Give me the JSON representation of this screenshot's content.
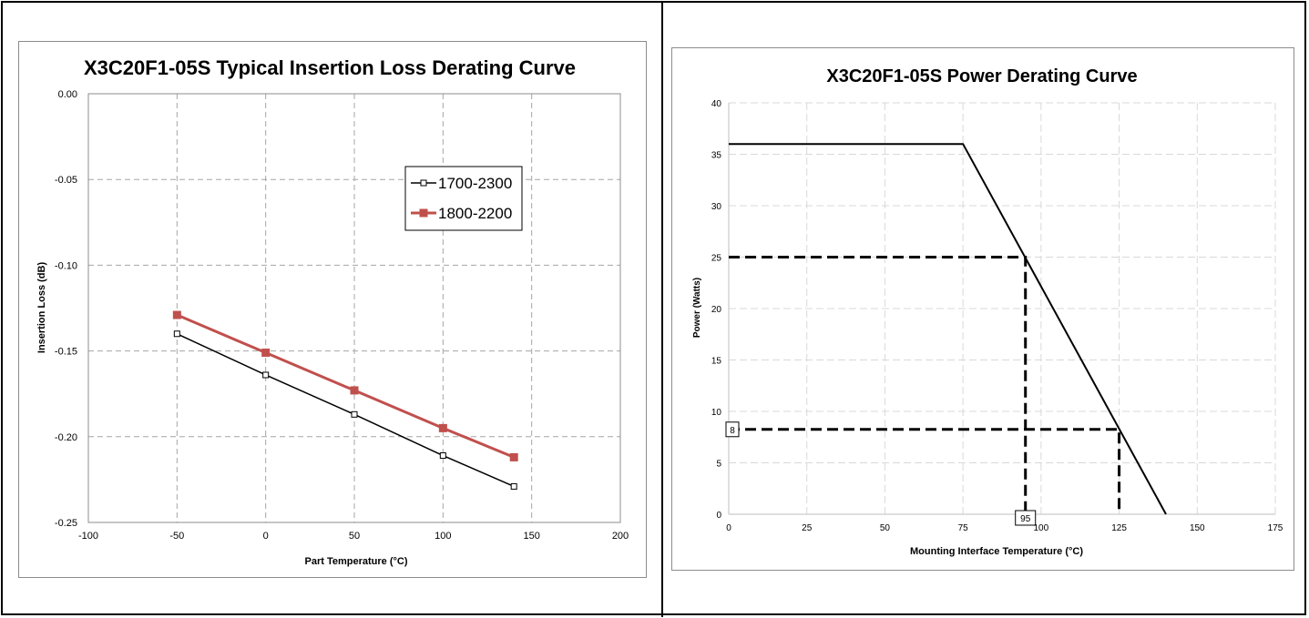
{
  "chart_data": [
    {
      "type": "line",
      "title": "X3C20F1-05S Typical Insertion Loss Derating Curve",
      "xlabel": "Part Temperature (°C)",
      "ylabel": "Insertion Loss (dB)",
      "xlim": [
        -100,
        200
      ],
      "ylim": [
        -0.25,
        0.0
      ],
      "xticks": [
        -100,
        -50,
        0,
        50,
        100,
        150,
        200
      ],
      "yticks": [
        0.0,
        -0.05,
        -0.1,
        -0.15,
        -0.2,
        -0.25
      ],
      "xtick_labels": [
        "-100",
        "-50",
        "0",
        "50",
        "100",
        "150",
        "200"
      ],
      "ytick_labels": [
        "0.00",
        "-0.05",
        "-0.10",
        "-0.15",
        "-0.20",
        "-0.25"
      ],
      "grid": true,
      "legend_position": "upper-right",
      "series": [
        {
          "name": "1700-2300",
          "color": "#000000",
          "marker": "open-square",
          "x": [
            -50,
            0,
            50,
            100,
            140
          ],
          "y": [
            -0.14,
            -0.164,
            -0.187,
            -0.211,
            -0.229
          ]
        },
        {
          "name": "1800-2200",
          "color": "#c0504d",
          "marker": "filled-square",
          "x": [
            -50,
            0,
            50,
            100,
            140
          ],
          "y": [
            -0.129,
            -0.151,
            -0.173,
            -0.195,
            -0.212
          ]
        }
      ]
    },
    {
      "type": "line",
      "title": "X3C20F1-05S Power Derating Curve",
      "xlabel": "Mounting Interface Temperature (°C)",
      "ylabel": "Power (Watts)",
      "xlim": [
        0,
        175
      ],
      "ylim": [
        0,
        40
      ],
      "xticks": [
        0,
        25,
        50,
        75,
        100,
        125,
        150,
        175
      ],
      "yticks": [
        0,
        5,
        10,
        15,
        20,
        25,
        30,
        35,
        40
      ],
      "xtick_labels": [
        "0",
        "25",
        "50",
        "75",
        "100",
        "125",
        "150",
        "175"
      ],
      "ytick_labels": [
        "0",
        "5",
        "10",
        "15",
        "20",
        "25",
        "30",
        "35",
        "40"
      ],
      "grid": true,
      "series": [
        {
          "color": "#000000",
          "x": [
            0,
            75,
            140
          ],
          "y": [
            36,
            36,
            0
          ]
        }
      ],
      "reference_lines": [
        {
          "x": [
            0,
            95,
            95
          ],
          "y": [
            25,
            25,
            0
          ]
        },
        {
          "x": [
            0,
            125,
            125
          ],
          "y": [
            8.25,
            8.25,
            0
          ]
        }
      ],
      "annotations": [
        {
          "text": "8",
          "x": 0,
          "y": 8.25
        },
        {
          "text": "95",
          "x": 95,
          "y": 0
        }
      ]
    }
  ]
}
